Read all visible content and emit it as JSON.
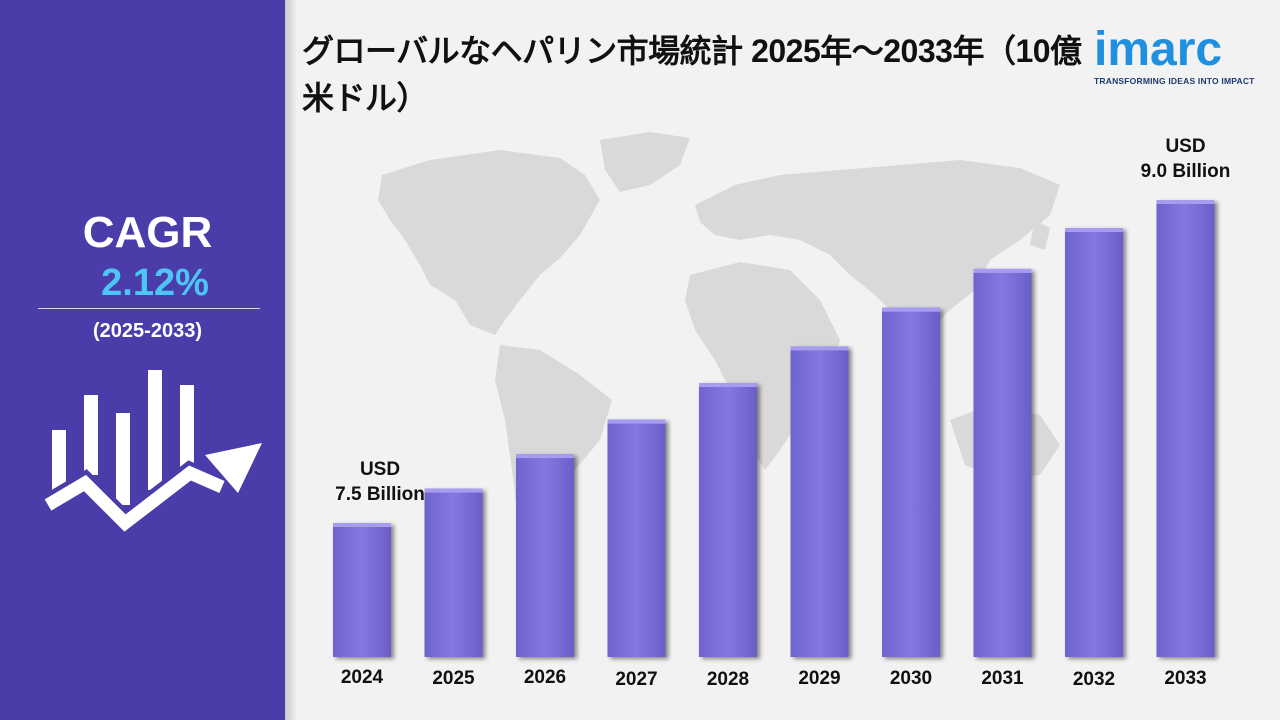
{
  "title": "グローバルなヘパリン市場統計 2025年〜2033年（10億米ドル）",
  "logo": {
    "name": "imarc",
    "tagline": "TRANSFORMING IDEAS INTO IMPACT"
  },
  "cagr": {
    "label": "CAGR",
    "value": "2.12%",
    "period": "(2025-2033)"
  },
  "chart_data": {
    "type": "bar",
    "categories": [
      "2024",
      "2025",
      "2026",
      "2027",
      "2028",
      "2029",
      "2030",
      "2031",
      "2032",
      "2033"
    ],
    "values": [
      7.5,
      7.66,
      7.82,
      7.98,
      8.15,
      8.32,
      8.5,
      8.68,
      8.87,
      9.0
    ],
    "unit": "Billion USD",
    "annotations": [
      {
        "category": "2024",
        "line1": "USD",
        "line2": "7.5 Billion"
      },
      {
        "category": "2033",
        "line1": "USD",
        "line2": "9.0 Billion"
      }
    ],
    "bar_color": "#7b6fd9",
    "grid": false,
    "legend": "none"
  }
}
